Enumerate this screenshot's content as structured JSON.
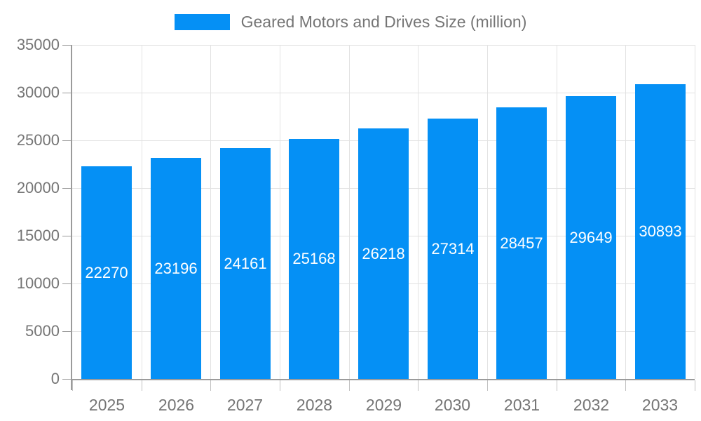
{
  "legend": {
    "label": "Geared Motors and Drives Size (million)"
  },
  "colors": {
    "bar": "#0590F5",
    "grid": "#e2e2e2",
    "axis": "#9b9b9b",
    "text": "#757575",
    "bar_label": "#ffffff",
    "background": "#ffffff"
  },
  "chart_data": {
    "type": "bar",
    "title": "Geared Motors and Drives Size (million)",
    "categories": [
      "2025",
      "2026",
      "2027",
      "2028",
      "2029",
      "2030",
      "2031",
      "2032",
      "2033"
    ],
    "values": [
      22270,
      23196,
      24161,
      25168,
      26218,
      27314,
      28457,
      29649,
      30893
    ],
    "xlabel": "",
    "ylabel": "",
    "ylim": [
      0,
      35000
    ],
    "ytick_step": 5000,
    "yticks": [
      0,
      5000,
      10000,
      15000,
      20000,
      25000,
      30000,
      35000
    ],
    "grid": true,
    "legend_position": "top",
    "bar_labels": "inside-center"
  }
}
